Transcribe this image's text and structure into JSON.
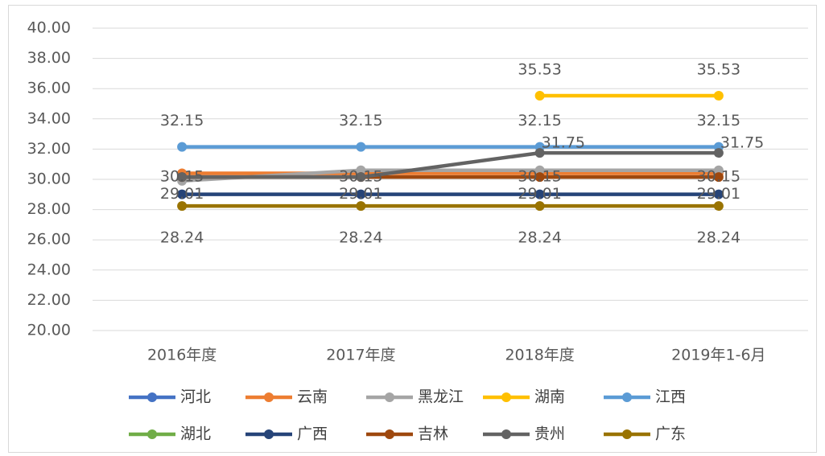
{
  "chart_data": {
    "type": "line",
    "categories": [
      "2016年度",
      "2017年度",
      "2018年度",
      "2019年1-6月"
    ],
    "ylim": [
      20,
      40
    ],
    "yticks": [
      {
        "value": 20,
        "label": "20.00"
      },
      {
        "value": 22,
        "label": "22.00"
      },
      {
        "value": 24,
        "label": "24.00"
      },
      {
        "value": 26,
        "label": "26.00"
      },
      {
        "value": 28,
        "label": "28.00"
      },
      {
        "value": 30,
        "label": "30.00"
      },
      {
        "value": 32,
        "label": "32.00"
      },
      {
        "value": 34,
        "label": "34.00"
      },
      {
        "value": 36,
        "label": "36.00"
      },
      {
        "value": 38,
        "label": "38.00"
      },
      {
        "value": 40,
        "label": "40.00"
      }
    ],
    "grid": true,
    "legend": "bottom",
    "series": [
      {
        "name": "河北",
        "color": "#4472c4",
        "values": [
          null,
          null,
          null,
          null
        ]
      },
      {
        "name": "云南",
        "color": "#ed7d31",
        "values": [
          30.4,
          30.4,
          30.4,
          30.4
        ]
      },
      {
        "name": "黑龙江",
        "color": "#a5a5a5",
        "values": [
          29.9,
          30.6,
          30.6,
          30.6
        ]
      },
      {
        "name": "湖南",
        "color": "#ffc000",
        "values": [
          null,
          null,
          35.53,
          35.53
        ],
        "data_labels": "above"
      },
      {
        "name": "江西",
        "color": "#5b9bd5",
        "values": [
          32.15,
          32.15,
          32.15,
          32.15
        ],
        "data_labels": "above"
      },
      {
        "name": "湖北",
        "color": "#70ad47",
        "values": [
          null,
          null,
          null,
          null
        ]
      },
      {
        "name": "广西",
        "color": "#264478",
        "values": [
          29.01,
          29.01,
          29.01,
          29.01
        ],
        "data_labels": "center"
      },
      {
        "name": "吉林",
        "color": "#9e480e",
        "values": [
          30.15,
          30.15,
          30.15,
          30.15
        ],
        "data_labels": "center"
      },
      {
        "name": "贵州",
        "color": "#636363",
        "values": [
          30.15,
          30.15,
          31.75,
          31.75
        ],
        "value_labels": [
          null,
          null,
          "31.75",
          "31.75"
        ],
        "data_labels": "right"
      },
      {
        "name": "广东",
        "color": "#997300",
        "values": [
          28.24,
          28.24,
          28.24,
          28.24
        ],
        "data_labels": "below"
      }
    ]
  }
}
